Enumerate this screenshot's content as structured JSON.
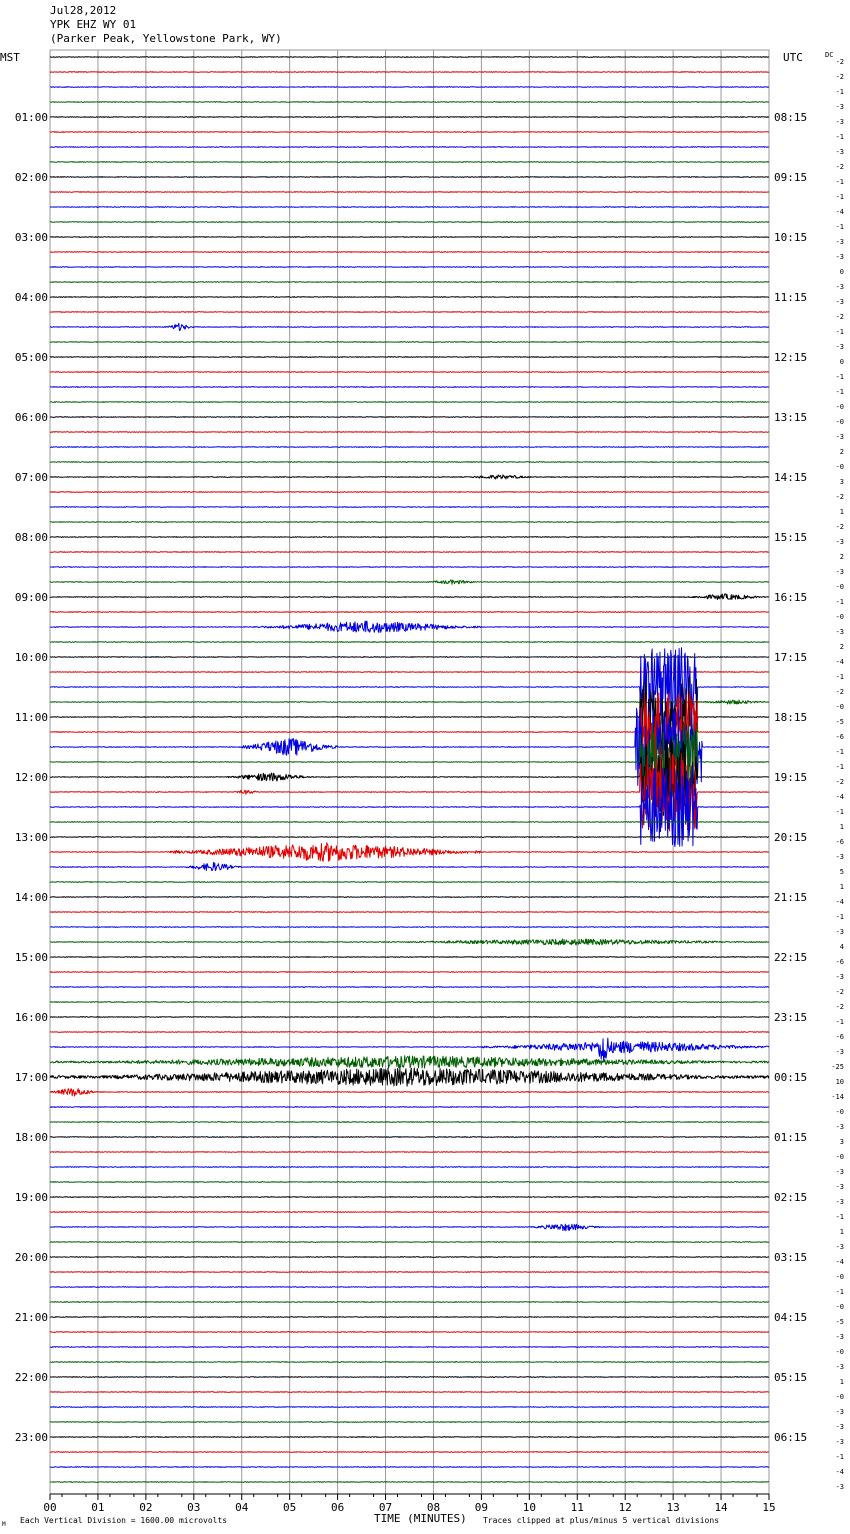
{
  "header": {
    "date": "Jul28,2012",
    "station": "YPK EHZ WY 01",
    "location": "(Parker Peak, Yellowstone Park, WY)"
  },
  "left_timezone": "MST",
  "right_timezone": "UTC",
  "dc_label": "DC",
  "footer": {
    "scale_note": "Each Vertical Division = 1600.00 microvolts",
    "xaxis_label": "TIME (MINUTES)",
    "clip_note": "Traces clipped at plus/minus 5 vertical divisions",
    "corner_mark": "M"
  },
  "colors": {
    "trace_cycle": [
      "#000000",
      "#e00000",
      "#0000e0",
      "#006000"
    ],
    "grid": "#9a9a9a"
  },
  "chart_data": {
    "type": "line",
    "title": "YPK EHZ WY 01",
    "xlabel": "TIME (MINUTES)",
    "xlim": [
      0,
      15
    ],
    "x_ticks": [
      "00",
      "01",
      "02",
      "03",
      "04",
      "05",
      "06",
      "07",
      "08",
      "09",
      "10",
      "11",
      "12",
      "13",
      "14",
      "15"
    ],
    "traces_per_hour": 4,
    "minutes_per_trace": 15,
    "hour_labels_mst": [
      "01:00",
      "02:00",
      "03:00",
      "04:00",
      "05:00",
      "06:00",
      "07:00",
      "08:00",
      "09:00",
      "10:00",
      "11:00",
      "12:00",
      "13:00",
      "14:00",
      "15:00",
      "16:00",
      "17:00",
      "18:00",
      "19:00",
      "20:00",
      "21:00",
      "22:00",
      "23:00"
    ],
    "hour_labels_utc": [
      "08:15",
      "09:15",
      "10:15",
      "11:15",
      "12:15",
      "13:15",
      "14:15",
      "15:15",
      "16:15",
      "17:15",
      "18:15",
      "19:15",
      "20:15",
      "21:15",
      "22:15",
      "23:15",
      "00:15",
      "01:15",
      "02:15",
      "03:15",
      "04:15",
      "05:15",
      "06:15"
    ],
    "dc_offsets": [
      "-2",
      "-2",
      "-1",
      "-3",
      "-3",
      "-1",
      "-3",
      "-2",
      "-1",
      "-1",
      "-4",
      "-1",
      "-3",
      "-3",
      "0",
      "-3",
      "-3",
      "-2",
      "-1",
      "-3",
      "0",
      "-1",
      "-1",
      "-0",
      "-0",
      "-3",
      "2",
      "-0",
      "3",
      "-2",
      "1",
      "-2",
      "-3",
      "2",
      "-3",
      "-0",
      "-1",
      "-0",
      "-3",
      "2",
      "-4",
      "-1",
      "-2",
      "-0",
      "-5",
      "-6",
      "-1",
      "-1",
      "-2",
      "-4",
      "-1",
      "1",
      "-6",
      "-3",
      "5",
      "1",
      "-4",
      "-1",
      "-3",
      "4",
      "-6",
      "-3",
      "-2",
      "-2",
      "-1",
      "-6",
      "-3",
      "-25",
      "10",
      "-14",
      "-0",
      "-3",
      "3",
      "-0",
      "-3",
      "-3",
      "-3",
      "-1",
      "1",
      "-3",
      "-4",
      "-0",
      "-1",
      "-0",
      "-5",
      "-3",
      "-0",
      "-3",
      "1",
      "-0",
      "-3",
      "-3",
      "-3",
      "-1",
      "-4",
      "-3"
    ],
    "events": [
      {
        "trace": 18,
        "start_min": 2.4,
        "end_min": 3.0,
        "amplitude_div": 0.5
      },
      {
        "trace": 28,
        "start_min": 8.6,
        "end_min": 10.2,
        "amplitude_div": 0.3
      },
      {
        "trace": 35,
        "start_min": 7.8,
        "end_min": 9.0,
        "amplitude_div": 0.3
      },
      {
        "trace": 36,
        "start_min": 13.2,
        "end_min": 15.0,
        "amplitude_div": 0.4
      },
      {
        "trace": 38,
        "start_min": 4.3,
        "end_min": 9.0,
        "amplitude_div": 0.8
      },
      {
        "trace": 43,
        "start_min": 13.5,
        "end_min": 15.0,
        "amplitude_div": 0.3
      },
      {
        "trace": 42,
        "start_min": 12.3,
        "end_min": 13.5,
        "amplitude_div": 5.0
      },
      {
        "trace": 44,
        "start_min": 12.3,
        "end_min": 13.5,
        "amplitude_div": 5.0
      },
      {
        "trace": 45,
        "start_min": 12.3,
        "end_min": 13.5,
        "amplitude_div": 5.0
      },
      {
        "trace": 46,
        "start_min": 4.0,
        "end_min": 6.0,
        "amplitude_div": 1.2
      },
      {
        "trace": 46,
        "start_min": 12.2,
        "end_min": 13.6,
        "amplitude_div": 5.0
      },
      {
        "trace": 47,
        "start_min": 12.3,
        "end_min": 13.5,
        "amplitude_div": 5.0
      },
      {
        "trace": 48,
        "start_min": 3.7,
        "end_min": 5.5,
        "amplitude_div": 0.6
      },
      {
        "trace": 48,
        "start_min": 12.3,
        "end_min": 13.5,
        "amplitude_div": 5.0
      },
      {
        "trace": 49,
        "start_min": 3.8,
        "end_min": 4.4,
        "amplitude_div": 0.3
      },
      {
        "trace": 49,
        "start_min": 12.3,
        "end_min": 13.5,
        "amplitude_div": 5.0
      },
      {
        "trace": 50,
        "start_min": 12.3,
        "end_min": 13.5,
        "amplitude_div": 5.0
      },
      {
        "trace": 53,
        "start_min": 2.5,
        "end_min": 9.0,
        "amplitude_div": 1.2
      },
      {
        "trace": 54,
        "start_min": 2.8,
        "end_min": 4.0,
        "amplitude_div": 0.6
      },
      {
        "trace": 59,
        "start_min": 6.8,
        "end_min": 15.0,
        "amplitude_div": 0.4
      },
      {
        "trace": 66,
        "start_min": 9.0,
        "end_min": 15.0,
        "amplitude_div": 0.8
      },
      {
        "trace": 66,
        "start_min": 11.4,
        "end_min": 11.7,
        "amplitude_div": 3.0
      },
      {
        "trace": 67,
        "start_min": 0.0,
        "end_min": 15.0,
        "amplitude_div": 0.8
      },
      {
        "trace": 68,
        "start_min": 0.0,
        "end_min": 15.0,
        "amplitude_div": 1.2
      },
      {
        "trace": 69,
        "start_min": 0.0,
        "end_min": 1.0,
        "amplitude_div": 0.6
      },
      {
        "trace": 78,
        "start_min": 10.0,
        "end_min": 11.5,
        "amplitude_div": 0.5
      }
    ]
  }
}
